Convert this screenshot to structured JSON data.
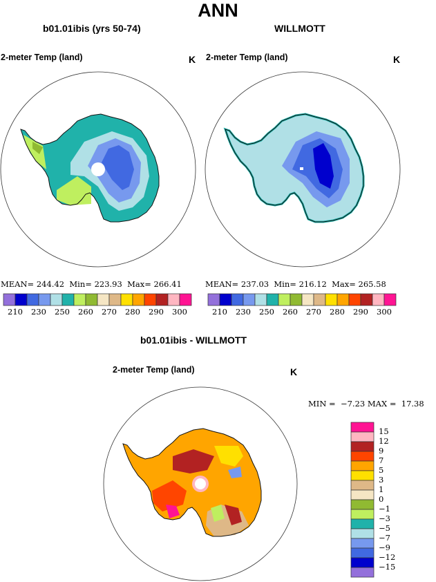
{
  "page_title": "ANN",
  "palette_abs": [
    "#9370DB",
    "#0000CD",
    "#4169E1",
    "#7799EE",
    "#B0E0E6",
    "#20B2AA",
    "#BFEF5F",
    "#90BA32",
    "#F5E6C4",
    "#DEB887",
    "#FFE000",
    "#FFA500",
    "#FF4500",
    "#B22222",
    "#FFB6C1",
    "#FF1493"
  ],
  "palette_diff": [
    "#9370DB",
    "#0000CD",
    "#4169E1",
    "#7799EE",
    "#B0E0E6",
    "#20B2AA",
    "#BFEF5F",
    "#90BA32",
    "#F5E6C4",
    "#DEB887",
    "#FFE000",
    "#FFA500",
    "#FF4500",
    "#B22222",
    "#FFB6C1",
    "#FF1493"
  ],
  "chart_data": [
    {
      "type": "heatmap",
      "projection": "south polar stereographic",
      "title": "b01.01ibis (yrs 50-74)",
      "variable": "2-meter Temp (land)",
      "units": "K",
      "stats": {
        "mean_label": "MEAN=",
        "mean": "244.42",
        "min_label": "Min=",
        "min": "223.93",
        "max_label": "Max=",
        "max": "266.41"
      },
      "colorbar": {
        "tick_labels": [
          "210",
          "230",
          "250",
          "260",
          "270",
          "280",
          "290",
          "300"
        ]
      }
    },
    {
      "type": "heatmap",
      "projection": "south polar stereographic",
      "title": "WILLMOTT",
      "variable": "2-meter Temp (land)",
      "units": "K",
      "stats": {
        "mean_label": "MEAN=",
        "mean": "237.03",
        "min_label": "Min=",
        "min": "216.12",
        "max_label": "Max=",
        "max": "265.58"
      },
      "colorbar": {
        "tick_labels": [
          "210",
          "230",
          "250",
          "260",
          "270",
          "280",
          "290",
          "300"
        ]
      }
    },
    {
      "type": "heatmap",
      "projection": "south polar stereographic",
      "title": "b01.01ibis - WILLMOTT",
      "variable": "2-meter Temp (land)",
      "units": "K",
      "stats": {
        "min_label": "MIN =",
        "min": "−7.23",
        "max_label": "MAX =",
        "max": "17.38"
      },
      "colorbar": {
        "tick_labels": [
          "15",
          "12",
          "9",
          "7",
          "5",
          "3",
          "1",
          "0",
          "−1",
          "−3",
          "−5",
          "−7",
          "−9",
          "−12",
          "−15"
        ]
      }
    }
  ]
}
